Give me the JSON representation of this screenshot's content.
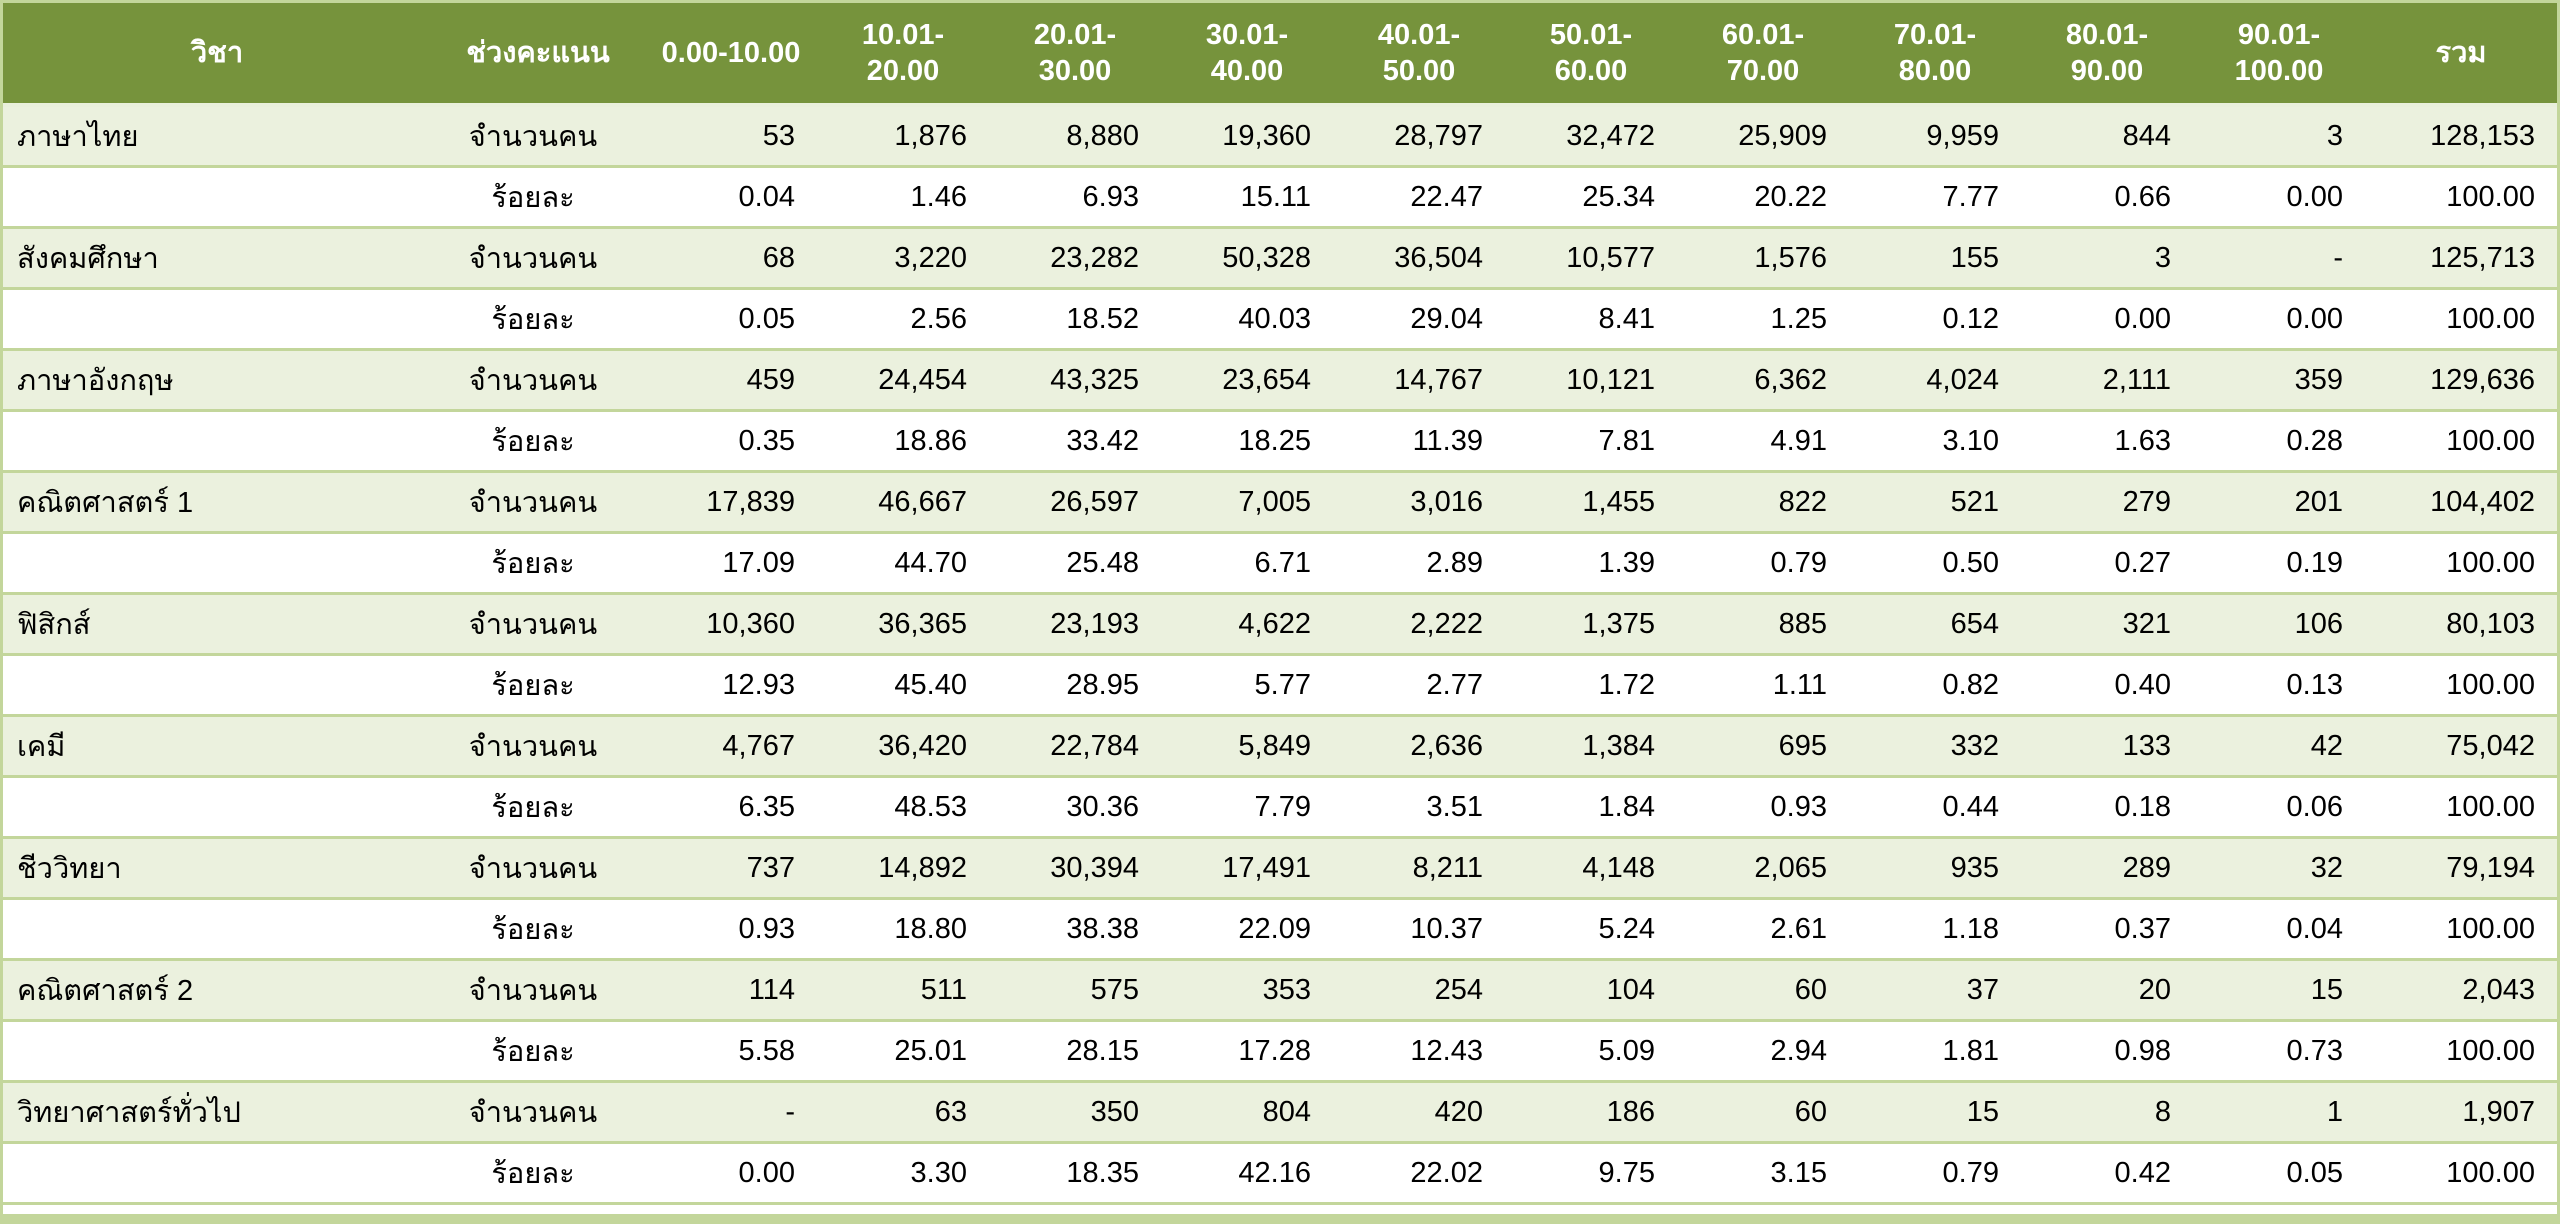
{
  "chart_data": {
    "type": "table",
    "columns": [
      "วิชา",
      "ช่วงคะแนน",
      "0.00-10.00",
      "10.01-20.00",
      "20.01-30.00",
      "30.01-40.00",
      "40.01-50.00",
      "50.01-60.00",
      "60.01-70.00",
      "70.01-80.00",
      "80.01-90.00",
      "90.01-100.00",
      "รวม"
    ],
    "row_labels": {
      "count": "จำนวนคน",
      "percent": "ร้อยละ"
    },
    "rows": [
      [
        "ภาษาไทย",
        "จำนวนคน",
        "53",
        "1,876",
        "8,880",
        "19,360",
        "28,797",
        "32,472",
        "25,909",
        "9,959",
        "844",
        "3",
        "128,153"
      ],
      [
        "",
        "ร้อยละ",
        "0.04",
        "1.46",
        "6.93",
        "15.11",
        "22.47",
        "25.34",
        "20.22",
        "7.77",
        "0.66",
        "0.00",
        "100.00"
      ],
      [
        "สังคมศึกษา",
        "จำนวนคน",
        "68",
        "3,220",
        "23,282",
        "50,328",
        "36,504",
        "10,577",
        "1,576",
        "155",
        "3",
        "-",
        "125,713"
      ],
      [
        "",
        "ร้อยละ",
        "0.05",
        "2.56",
        "18.52",
        "40.03",
        "29.04",
        "8.41",
        "1.25",
        "0.12",
        "0.00",
        "0.00",
        "100.00"
      ],
      [
        "ภาษาอังกฤษ",
        "จำนวนคน",
        "459",
        "24,454",
        "43,325",
        "23,654",
        "14,767",
        "10,121",
        "6,362",
        "4,024",
        "2,111",
        "359",
        "129,636"
      ],
      [
        "",
        "ร้อยละ",
        "0.35",
        "18.86",
        "33.42",
        "18.25",
        "11.39",
        "7.81",
        "4.91",
        "3.10",
        "1.63",
        "0.28",
        "100.00"
      ],
      [
        "คณิตศาสตร์ 1",
        "จำนวนคน",
        "17,839",
        "46,667",
        "26,597",
        "7,005",
        "3,016",
        "1,455",
        "822",
        "521",
        "279",
        "201",
        "104,402"
      ],
      [
        "",
        "ร้อยละ",
        "17.09",
        "44.70",
        "25.48",
        "6.71",
        "2.89",
        "1.39",
        "0.79",
        "0.50",
        "0.27",
        "0.19",
        "100.00"
      ],
      [
        "ฟิสิกส์",
        "จำนวนคน",
        "10,360",
        "36,365",
        "23,193",
        "4,622",
        "2,222",
        "1,375",
        "885",
        "654",
        "321",
        "106",
        "80,103"
      ],
      [
        "",
        "ร้อยละ",
        "12.93",
        "45.40",
        "28.95",
        "5.77",
        "2.77",
        "1.72",
        "1.11",
        "0.82",
        "0.40",
        "0.13",
        "100.00"
      ],
      [
        "เคมี",
        "จำนวนคน",
        "4,767",
        "36,420",
        "22,784",
        "5,849",
        "2,636",
        "1,384",
        "695",
        "332",
        "133",
        "42",
        "75,042"
      ],
      [
        "",
        "ร้อยละ",
        "6.35",
        "48.53",
        "30.36",
        "7.79",
        "3.51",
        "1.84",
        "0.93",
        "0.44",
        "0.18",
        "0.06",
        "100.00"
      ],
      [
        "ชีววิทยา",
        "จำนวนคน",
        "737",
        "14,892",
        "30,394",
        "17,491",
        "8,211",
        "4,148",
        "2,065",
        "935",
        "289",
        "32",
        "79,194"
      ],
      [
        "",
        "ร้อยละ",
        "0.93",
        "18.80",
        "38.38",
        "22.09",
        "10.37",
        "5.24",
        "2.61",
        "1.18",
        "0.37",
        "0.04",
        "100.00"
      ],
      [
        "คณิตศาสตร์ 2",
        "จำนวนคน",
        "114",
        "511",
        "575",
        "353",
        "254",
        "104",
        "60",
        "37",
        "20",
        "15",
        "2,043"
      ],
      [
        "",
        "ร้อยละ",
        "5.58",
        "25.01",
        "28.15",
        "17.28",
        "12.43",
        "5.09",
        "2.94",
        "1.81",
        "0.98",
        "0.73",
        "100.00"
      ],
      [
        "วิทยาศาสตร์ทั่วไป",
        "จำนวนคน",
        "-",
        "63",
        "350",
        "804",
        "420",
        "186",
        "60",
        "15",
        "8",
        "1",
        "1,907"
      ],
      [
        "",
        "ร้อยละ",
        "0.00",
        "3.30",
        "18.35",
        "42.16",
        "22.02",
        "9.75",
        "3.15",
        "0.79",
        "0.42",
        "0.05",
        "100.00"
      ]
    ]
  },
  "colors": {
    "header_bg": "#76933C",
    "header_text": "#FFFFFF",
    "row_stripe_green": "#EBF1DE",
    "row_stripe_white": "#FFFFFF",
    "grid_border": "#C3D69B",
    "body_text": "#000000"
  }
}
